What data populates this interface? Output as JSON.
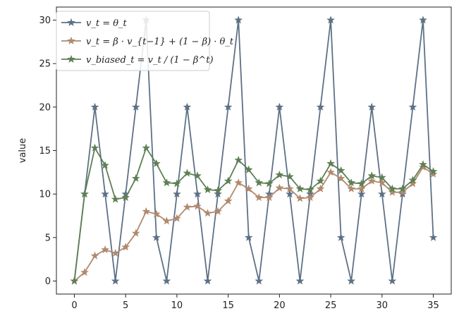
{
  "chart_data": {
    "type": "line",
    "title": "",
    "xlabel": "",
    "ylabel": "value",
    "xlim": [
      -1.75,
      36.75
    ],
    "ylim": [
      -1.5,
      31.5
    ],
    "xticks": [
      0,
      5,
      10,
      15,
      20,
      25,
      30,
      35
    ],
    "yticks": [
      0,
      5,
      10,
      15,
      20,
      25,
      30
    ],
    "grid": false,
    "legend_position": "top-left",
    "x": [
      0,
      1,
      2,
      3,
      4,
      5,
      6,
      7,
      8,
      9,
      10,
      11,
      12,
      13,
      14,
      15,
      16,
      17,
      18,
      19,
      20,
      21,
      22,
      23,
      24,
      25,
      26,
      27,
      28,
      29,
      30,
      31,
      32,
      33,
      34,
      35
    ],
    "series": [
      {
        "name": "v_t = θ_t",
        "color": "#5d7186",
        "marker": "star",
        "values": [
          0,
          10,
          20,
          10,
          0,
          10,
          20,
          30,
          5,
          0,
          10,
          20,
          10,
          0,
          10,
          20,
          30,
          5,
          0,
          10,
          20,
          10,
          0,
          10,
          20,
          30,
          5,
          0,
          10,
          20,
          10,
          0,
          10,
          20,
          30,
          5
        ]
      },
      {
        "name": "v_t = β · v_{t−1} + (1 − β) · θ_t",
        "color": "#b08a6e",
        "marker": "star",
        "values": [
          0,
          1,
          2.9,
          3.6,
          3.2,
          3.9,
          5.5,
          8,
          7.7,
          6.9,
          7.2,
          8.5,
          8.6,
          7.8,
          8,
          9.2,
          11.3,
          10.6,
          9.6,
          9.6,
          10.7,
          10.6,
          9.5,
          9.6,
          10.6,
          12.5,
          11.8,
          10.6,
          10.6,
          11.5,
          11.3,
          10.2,
          10.2,
          11.2,
          13.1,
          12.3
        ]
      },
      {
        "name": "v_biased_t = v_t / (1 − β^t)",
        "color": "#5f7f55",
        "marker": "star",
        "values": [
          0,
          10,
          15.3,
          13.3,
          9.4,
          9.6,
          11.8,
          15.3,
          13.5,
          11.3,
          11.2,
          12.4,
          12.1,
          10.5,
          10.4,
          11.5,
          13.9,
          12.8,
          11.3,
          11.2,
          12.2,
          12,
          10.6,
          10.5,
          11.5,
          13.5,
          12.7,
          11.3,
          11.2,
          12.1,
          11.9,
          10.6,
          10.6,
          11.6,
          13.4,
          12.6
        ]
      }
    ]
  }
}
